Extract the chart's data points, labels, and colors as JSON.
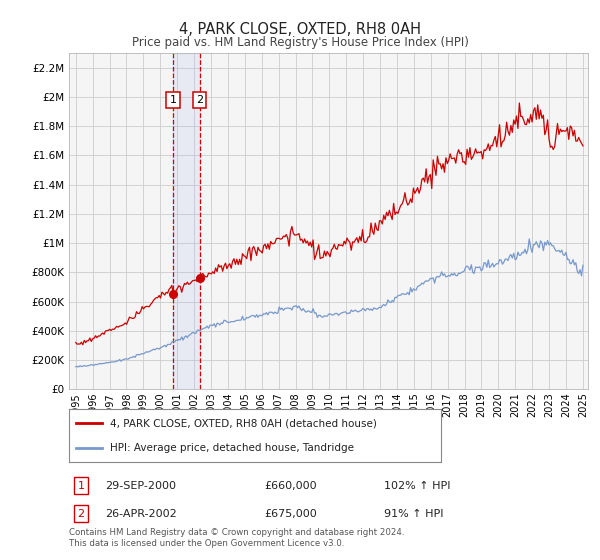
{
  "title": "4, PARK CLOSE, OXTED, RH8 0AH",
  "subtitle": "Price paid vs. HM Land Registry's House Price Index (HPI)",
  "legend_line1": "4, PARK CLOSE, OXTED, RH8 0AH (detached house)",
  "legend_line2": "HPI: Average price, detached house, Tandridge",
  "red_color": "#cc0000",
  "blue_color": "#7799cc",
  "sale1_year": 2000.75,
  "sale2_year": 2002.33,
  "sale1_price": 660000,
  "sale2_price": 675000,
  "sale1_label": "1",
  "sale2_label": "2",
  "sale1_date_str": "29-SEP-2000",
  "sale2_date_str": "26-APR-2002",
  "sale1_pct_str": "102% ↑ HPI",
  "sale2_pct_str": "91% ↑ HPI",
  "sale1_price_str": "£660,000",
  "sale2_price_str": "£675,000",
  "footnote": "Contains HM Land Registry data © Crown copyright and database right 2024.\nThis data is licensed under the Open Government Licence v3.0.",
  "ylim_max": 2300000,
  "xlim_start": 1994.6,
  "xlim_end": 2025.3,
  "background_color": "#f5f5f5",
  "grid_color": "#cccccc",
  "yticks": [
    0,
    200000,
    400000,
    600000,
    800000,
    1000000,
    1200000,
    1400000,
    1600000,
    1800000,
    2000000,
    2200000
  ],
  "ylabels": [
    "£0",
    "£200K",
    "£400K",
    "£600K",
    "£800K",
    "£1M",
    "£1.2M",
    "£1.4M",
    "£1.6M",
    "£1.8M",
    "£2M",
    "£2.2M"
  ]
}
